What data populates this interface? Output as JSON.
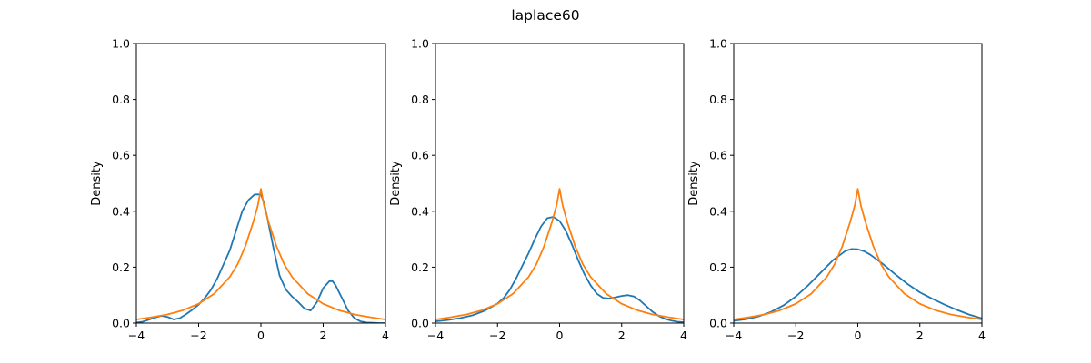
{
  "figure": {
    "title": "laplace60"
  },
  "colors": {
    "series_1": "#1f77b4",
    "series_2": "#ff7f0e"
  },
  "chart_data": [
    {
      "type": "line",
      "title": "",
      "xlabel": "",
      "ylabel": "Density",
      "xlim": [
        -4,
        4
      ],
      "ylim": [
        0,
        1
      ],
      "xticks": [
        -4,
        -2,
        0,
        2,
        4
      ],
      "xtick_labels": [
        "−4",
        "−2",
        "0",
        "2",
        "4"
      ],
      "yticks": [
        0,
        0.2,
        0.4,
        0.6,
        0.8,
        1.0
      ],
      "ytick_labels": [
        "0.0",
        "0.2",
        "0.4",
        "0.6",
        "0.8",
        "1.0"
      ],
      "grid": false,
      "series": [
        {
          "x": [
            -4,
            -3.8,
            -3.6,
            -3.4,
            -3.2,
            -3.0,
            -2.8,
            -2.6,
            -2.4,
            -2.2,
            -2.0,
            -1.8,
            -1.6,
            -1.4,
            -1.2,
            -1.0,
            -0.8,
            -0.6,
            -0.4,
            -0.2,
            0.0,
            0.1,
            0.2,
            0.4,
            0.6,
            0.8,
            1.0,
            1.2,
            1.4,
            1.6,
            1.8,
            2.0,
            2.2,
            2.3,
            2.4,
            2.6,
            2.8,
            3.0,
            3.2,
            3.4,
            3.6,
            3.8,
            4.0
          ],
          "y": [
            0.002,
            0.005,
            0.012,
            0.02,
            0.026,
            0.022,
            0.013,
            0.018,
            0.032,
            0.048,
            0.066,
            0.09,
            0.12,
            0.16,
            0.21,
            0.26,
            0.33,
            0.4,
            0.44,
            0.46,
            0.46,
            0.43,
            0.38,
            0.27,
            0.17,
            0.12,
            0.095,
            0.075,
            0.052,
            0.045,
            0.075,
            0.125,
            0.15,
            0.15,
            0.135,
            0.09,
            0.045,
            0.018,
            0.006,
            0.002,
            0.001,
            0.0,
            0.0
          ]
        },
        {
          "x": [
            -4,
            -3.5,
            -3.0,
            -2.5,
            -2.0,
            -1.5,
            -1.0,
            -0.75,
            -0.5,
            -0.25,
            -0.1,
            0.0,
            0.1,
            0.25,
            0.5,
            0.75,
            1.0,
            1.5,
            2.0,
            2.5,
            3.0,
            3.5,
            4.0
          ],
          "y": [
            0.013,
            0.021,
            0.031,
            0.046,
            0.069,
            0.105,
            0.165,
            0.21,
            0.275,
            0.36,
            0.42,
            0.48,
            0.42,
            0.36,
            0.275,
            0.21,
            0.165,
            0.105,
            0.069,
            0.046,
            0.031,
            0.021,
            0.013
          ]
        }
      ]
    },
    {
      "type": "line",
      "title": "",
      "xlabel": "",
      "ylabel": "Density",
      "xlim": [
        -4,
        4
      ],
      "ylim": [
        0,
        1
      ],
      "xticks": [
        -4,
        -2,
        0,
        2,
        4
      ],
      "xtick_labels": [
        "−4",
        "−2",
        "0",
        "2",
        "4"
      ],
      "yticks": [
        0,
        0.2,
        0.4,
        0.6,
        0.8,
        1.0
      ],
      "ytick_labels": [
        "0.0",
        "0.2",
        "0.4",
        "0.6",
        "0.8",
        "1.0"
      ],
      "grid": false,
      "series": [
        {
          "x": [
            -4,
            -3.6,
            -3.2,
            -2.8,
            -2.4,
            -2.0,
            -1.8,
            -1.6,
            -1.4,
            -1.2,
            -1.0,
            -0.8,
            -0.6,
            -0.4,
            -0.2,
            0.0,
            0.2,
            0.4,
            0.6,
            0.8,
            1.0,
            1.2,
            1.4,
            1.6,
            1.8,
            2.0,
            2.2,
            2.4,
            2.6,
            2.8,
            3.0,
            3.2,
            3.4,
            3.6,
            3.8,
            4.0
          ],
          "y": [
            0.006,
            0.011,
            0.018,
            0.028,
            0.045,
            0.07,
            0.09,
            0.12,
            0.16,
            0.205,
            0.25,
            0.3,
            0.345,
            0.375,
            0.38,
            0.365,
            0.33,
            0.28,
            0.225,
            0.175,
            0.135,
            0.105,
            0.09,
            0.088,
            0.092,
            0.097,
            0.1,
            0.095,
            0.08,
            0.06,
            0.04,
            0.025,
            0.015,
            0.009,
            0.005,
            0.003
          ]
        },
        {
          "x": [
            -4,
            -3.5,
            -3.0,
            -2.5,
            -2.0,
            -1.5,
            -1.0,
            -0.75,
            -0.5,
            -0.25,
            -0.1,
            0.0,
            0.1,
            0.25,
            0.5,
            0.75,
            1.0,
            1.5,
            2.0,
            2.5,
            3.0,
            3.5,
            4.0
          ],
          "y": [
            0.013,
            0.021,
            0.031,
            0.046,
            0.069,
            0.105,
            0.165,
            0.21,
            0.275,
            0.36,
            0.42,
            0.48,
            0.42,
            0.36,
            0.275,
            0.21,
            0.165,
            0.105,
            0.069,
            0.046,
            0.031,
            0.021,
            0.013
          ]
        }
      ]
    },
    {
      "type": "line",
      "title": "",
      "xlabel": "",
      "ylabel": "Density",
      "xlim": [
        -4,
        4
      ],
      "ylim": [
        0,
        1
      ],
      "xticks": [
        -4,
        -2,
        0,
        2,
        4
      ],
      "xtick_labels": [
        "−4",
        "−2",
        "0",
        "2",
        "4"
      ],
      "yticks": [
        0,
        0.2,
        0.4,
        0.6,
        0.8,
        1.0
      ],
      "ytick_labels": [
        "0.0",
        "0.2",
        "0.4",
        "0.6",
        "0.8",
        "1.0"
      ],
      "grid": false,
      "series": [
        {
          "x": [
            -4,
            -3.6,
            -3.2,
            -2.8,
            -2.4,
            -2.0,
            -1.6,
            -1.2,
            -0.8,
            -0.4,
            -0.2,
            0.0,
            0.2,
            0.4,
            0.8,
            1.2,
            1.6,
            2.0,
            2.4,
            2.8,
            3.2,
            3.6,
            4.0
          ],
          "y": [
            0.008,
            0.014,
            0.024,
            0.04,
            0.063,
            0.095,
            0.135,
            0.18,
            0.225,
            0.258,
            0.265,
            0.264,
            0.257,
            0.245,
            0.212,
            0.175,
            0.14,
            0.11,
            0.087,
            0.066,
            0.047,
            0.03,
            0.017
          ]
        },
        {
          "x": [
            -4,
            -3.5,
            -3.0,
            -2.5,
            -2.0,
            -1.5,
            -1.0,
            -0.75,
            -0.5,
            -0.25,
            -0.1,
            0.0,
            0.1,
            0.25,
            0.5,
            0.75,
            1.0,
            1.5,
            2.0,
            2.5,
            3.0,
            3.5,
            4.0
          ],
          "y": [
            0.013,
            0.021,
            0.031,
            0.046,
            0.069,
            0.105,
            0.165,
            0.21,
            0.275,
            0.36,
            0.42,
            0.48,
            0.42,
            0.36,
            0.275,
            0.21,
            0.165,
            0.105,
            0.069,
            0.046,
            0.031,
            0.021,
            0.013
          ]
        }
      ]
    }
  ]
}
